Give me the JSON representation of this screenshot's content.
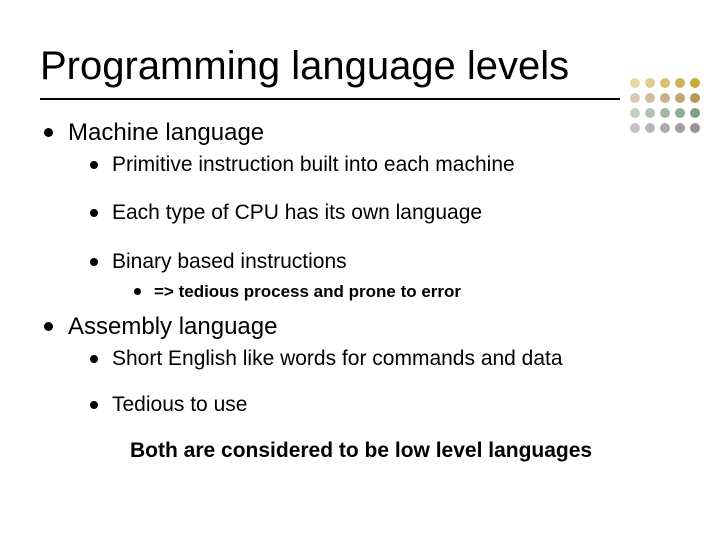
{
  "title": "Programming language levels",
  "ruleColor": "#000000",
  "dots": {
    "rows": 4,
    "cols": 5,
    "colors": [
      "#e8d8a8",
      "#e0cc8c",
      "#d8c070",
      "#d0b454",
      "#c8a838",
      "#d8c8b8",
      "#d0bca0",
      "#c8b088",
      "#c0a470",
      "#b89858",
      "#c0d0c0",
      "#b0c4b0",
      "#a0b8a0",
      "#90ac90",
      "#80a080",
      "#c8c0c8",
      "#bcb4bc",
      "#b0a8b0",
      "#a49ca4",
      "#989098"
    ]
  },
  "sections": [
    {
      "heading": "Machine language",
      "items": [
        {
          "text": "Primitive instruction built into each machine"
        },
        {
          "text": "Each type of CPU has its own language"
        },
        {
          "text": "Binary based instructions",
          "sub": [
            "=> tedious process and prone to error"
          ]
        }
      ]
    },
    {
      "heading": "Assembly language",
      "items": [
        {
          "text": "Short English like words for commands and data"
        },
        {
          "text": "Tedious to use"
        }
      ]
    }
  ],
  "footer": "Both are considered to be low level languages"
}
